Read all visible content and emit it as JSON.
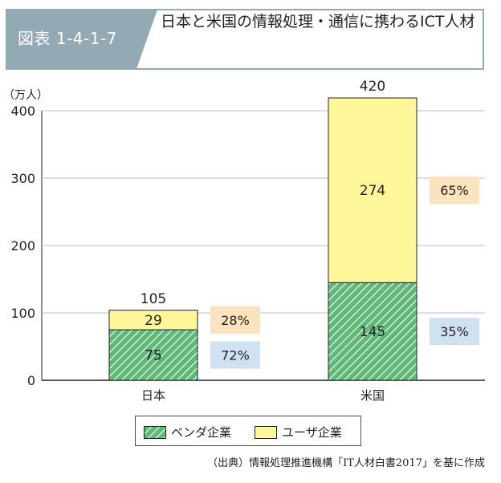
{
  "figure_label": "図表 1-4-1-7",
  "title": "日本と米国の情報処理・通信に携わるICT人材",
  "source_note": "（出典）情報処理推進機構「IT人材白書2017」を基に作成",
  "colors": {
    "header_tab": "#93a9b4",
    "vendor_fill": "#5fba78",
    "vendor_hatch": "#ffffff",
    "user_fill": "#fff89a",
    "vendor_share_bg": "#cfe2f2",
    "user_share_bg": "#fbe3bd",
    "border": "#231f20"
  },
  "chart_data": {
    "type": "bar",
    "stacked": true,
    "title": "日本と米国の情報処理・通信に携わるICT人材",
    "ylabel": "（万人）",
    "ylim": [
      0,
      400
    ],
    "yticks": [
      0,
      100,
      200,
      300,
      400
    ],
    "categories": [
      "日本",
      "米国"
    ],
    "series": [
      {
        "name": "ベンダ企業",
        "values": [
          75,
          145
        ],
        "shares": [
          "72%",
          "35%"
        ]
      },
      {
        "name": "ユーザ企業",
        "values": [
          29,
          274
        ],
        "shares": [
          "28%",
          "65%"
        ]
      }
    ],
    "totals": [
      105,
      420
    ],
    "legend_position": "bottom"
  }
}
